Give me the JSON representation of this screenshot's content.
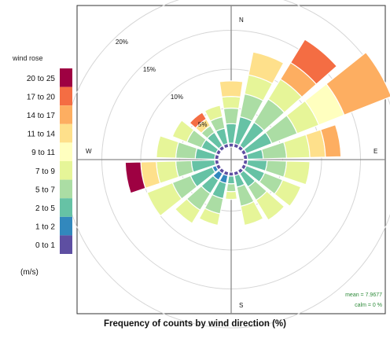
{
  "chart_data": {
    "type": "wind-rose",
    "title": "Frequency of counts by wind direction (%)",
    "legend_title": "wind rose",
    "legend_units": "(m/s)",
    "speed_bins": [
      "0 to 1",
      "1 to 2",
      "2 to 5",
      "5 to 7",
      "7 to 9",
      "9 to 11",
      "11 to 14",
      "14 to 17",
      "17 to 20",
      "20 to 25"
    ],
    "bin_colors": [
      "#5e4fa2",
      "#3288bd",
      "#66c2a5",
      "#abdda4",
      "#e6f598",
      "#ffffbf",
      "#fee08b",
      "#fdae61",
      "#f46d43",
      "#9e0142"
    ],
    "ring_labels": [
      "5%",
      "10%",
      "15%",
      "20%"
    ],
    "ring_values": [
      5,
      10,
      15,
      20
    ],
    "rmax": 20,
    "direction_labels": {
      "N": "N",
      "E": "E",
      "S": "S",
      "W": "W"
    },
    "stats": {
      "mean": "mean = 7.9677",
      "calm": "calm = 0 %"
    },
    "sectors": [
      {
        "direction": 0,
        "cumulative": [
          0.5,
          0.5,
          3.0,
          5.0,
          6.5,
          6.5,
          8.5,
          8.5,
          8.5,
          8.5
        ]
      },
      {
        "direction": 20,
        "cumulative": [
          0.5,
          0.5,
          4.0,
          7.0,
          9.5,
          9.5,
          12.5,
          12.5,
          12.5,
          12.5
        ]
      },
      {
        "direction": 40,
        "cumulative": [
          0.5,
          0.5,
          4.0,
          7.5,
          10.5,
          10.5,
          10.5,
          13.0,
          16.5,
          16.5
        ]
      },
      {
        "direction": 60,
        "cumulative": [
          0.5,
          0.5,
          4.0,
          7.5,
          10.5,
          14.0,
          14.0,
          20.5,
          20.5,
          20.5
        ]
      },
      {
        "direction": 80,
        "cumulative": [
          0.5,
          0.5,
          2.5,
          5.5,
          8.5,
          8.5,
          10.5,
          12.5,
          12.5,
          12.5
        ]
      },
      {
        "direction": 100,
        "cumulative": [
          0.5,
          0.5,
          3.0,
          5.5,
          8.5,
          8.5,
          8.5,
          8.5,
          8.5,
          8.5
        ]
      },
      {
        "direction": 120,
        "cumulative": [
          0.5,
          0.5,
          3.0,
          5.5,
          8.0,
          8.0,
          8.0,
          8.0,
          8.0,
          8.0
        ]
      },
      {
        "direction": 140,
        "cumulative": [
          0.5,
          0.5,
          2.5,
          4.5,
          7.5,
          7.5,
          7.5,
          7.5,
          7.5,
          7.5
        ]
      },
      {
        "direction": 160,
        "cumulative": [
          0.5,
          0.5,
          2.0,
          4.5,
          7.0,
          7.0,
          7.0,
          7.0,
          7.0,
          7.0
        ]
      },
      {
        "direction": 180,
        "cumulative": [
          0.5,
          0.5,
          1.5,
          2.5,
          3.5,
          3.5,
          3.5,
          3.5,
          3.5,
          3.5
        ]
      },
      {
        "direction": 200,
        "cumulative": [
          0.5,
          1.5,
          3.5,
          5.5,
          7.0,
          7.0,
          7.0,
          7.0,
          7.0,
          7.0
        ]
      },
      {
        "direction": 220,
        "cumulative": [
          0.5,
          1.5,
          3.5,
          6.0,
          8.0,
          8.0,
          8.0,
          8.0,
          8.0,
          8.0
        ]
      },
      {
        "direction": 240,
        "cumulative": [
          0.5,
          1.0,
          4.0,
          6.5,
          10.0,
          10.0,
          10.0,
          10.0,
          10.0,
          10.0
        ]
      },
      {
        "direction": 260,
        "cumulative": [
          0.5,
          0.5,
          3.5,
          5.5,
          8.0,
          8.0,
          10.0,
          10.0,
          10.0,
          12.0
        ]
      },
      {
        "direction": 280,
        "cumulative": [
          0.5,
          0.5,
          3.0,
          5.5,
          8.0,
          8.0,
          8.0,
          8.0,
          8.0,
          8.0
        ]
      },
      {
        "direction": 300,
        "cumulative": [
          0.5,
          0.5,
          2.5,
          4.5,
          6.5,
          6.5,
          6.5,
          6.5,
          6.5,
          6.5
        ]
      },
      {
        "direction": 320,
        "cumulative": [
          0.5,
          0.5,
          2.5,
          3.5,
          3.5,
          3.5,
          4.5,
          4.5,
          5.5,
          5.5
        ]
      },
      {
        "direction": 340,
        "cumulative": [
          0.5,
          0.5,
          2.5,
          4.0,
          5.5,
          5.5,
          5.5,
          5.5,
          5.5,
          5.5
        ]
      }
    ]
  }
}
